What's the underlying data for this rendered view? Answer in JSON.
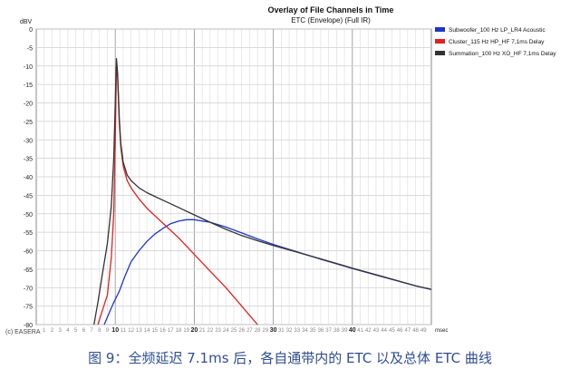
{
  "chart_data": {
    "type": "line",
    "title": "Overlay of File Channels in Time",
    "subtitle": "ETC (Envelope) (Full IR)",
    "ylabel": "dBV",
    "xlabel": "msec",
    "xlim": [
      0,
      50
    ],
    "ylim": [
      -80,
      0
    ],
    "x_ticks": [
      1,
      2,
      3,
      4,
      5,
      6,
      7,
      8,
      9,
      10,
      11,
      12,
      13,
      14,
      15,
      16,
      17,
      18,
      19,
      20,
      21,
      22,
      23,
      24,
      25,
      26,
      27,
      28,
      29,
      30,
      31,
      32,
      33,
      34,
      35,
      36,
      37,
      38,
      39,
      40,
      41,
      42,
      43,
      44,
      45,
      46,
      47,
      48,
      49
    ],
    "x_major_ticks": [
      10,
      20,
      30,
      40
    ],
    "y_ticks": [
      0,
      -5,
      -10,
      -15,
      -20,
      -25,
      -30,
      -35,
      -40,
      -45,
      -50,
      -55,
      -60,
      -65,
      -70,
      -75,
      -80
    ],
    "grid": true,
    "legend_position": "top-right",
    "series": [
      {
        "name": "Subwoofer_100 Hz LP_LR4 Acoustic",
        "color": "#1f35c8",
        "x": [
          8.6,
          9.2,
          9.8,
          10.5,
          11.2,
          12,
          13,
          14,
          15,
          16,
          17,
          18,
          19,
          20,
          22,
          24,
          26,
          28,
          30,
          33,
          36,
          40,
          44,
          48,
          50
        ],
        "y": [
          -80,
          -77,
          -74,
          -71,
          -67,
          -63,
          -60,
          -57.5,
          -55.5,
          -54,
          -52.7,
          -52,
          -51.6,
          -51.6,
          -52.3,
          -53.6,
          -55.2,
          -56.8,
          -58.3,
          -60.3,
          -62.3,
          -64.8,
          -67.2,
          -69.5,
          -70.5
        ]
      },
      {
        "name": "Cluster_115 Hz HP_HF 7,1ms Delay",
        "color": "#e02020",
        "x": [
          7.8,
          8.4,
          9.0,
          9.5,
          9.8,
          10.0,
          10.15,
          10.3,
          10.5,
          10.7,
          11,
          11.5,
          12,
          13,
          14,
          15,
          16,
          18,
          20,
          22,
          24,
          26,
          27,
          28
        ],
        "y": [
          -80,
          -76,
          -72,
          -62,
          -50,
          -30,
          -10,
          -13,
          -25,
          -32,
          -37,
          -41,
          -43,
          -46,
          -48.5,
          -50.5,
          -52.5,
          -56.5,
          -61,
          -65.5,
          -70,
          -75,
          -77.5,
          -80
        ]
      },
      {
        "name": "Summation_100 Hz XO_HF 7,1ms Delay",
        "color": "#333333",
        "x": [
          7.3,
          7.8,
          8.4,
          9.0,
          9.5,
          9.8,
          10.0,
          10.15,
          10.3,
          10.5,
          10.7,
          11,
          11.5,
          12,
          13,
          14,
          15,
          16,
          18,
          20,
          22,
          24,
          26,
          28,
          30,
          33,
          36,
          40,
          44,
          48,
          50
        ],
        "y": [
          -80,
          -74,
          -66,
          -58,
          -48,
          -35,
          -20,
          -8,
          -12,
          -24,
          -31,
          -36,
          -39.5,
          -41,
          -43,
          -44.3,
          -45.3,
          -46.3,
          -48.3,
          -50.3,
          -52.3,
          -54.2,
          -55.9,
          -57.3,
          -58.6,
          -60.4,
          -62.2,
          -64.7,
          -67.1,
          -69.5,
          -70.5
        ]
      }
    ]
  },
  "credit": "(c) EASERA",
  "caption": "图 9：全频延迟 7.1ms 后，各自通带内的 ETC 以及总体 ETC 曲线"
}
